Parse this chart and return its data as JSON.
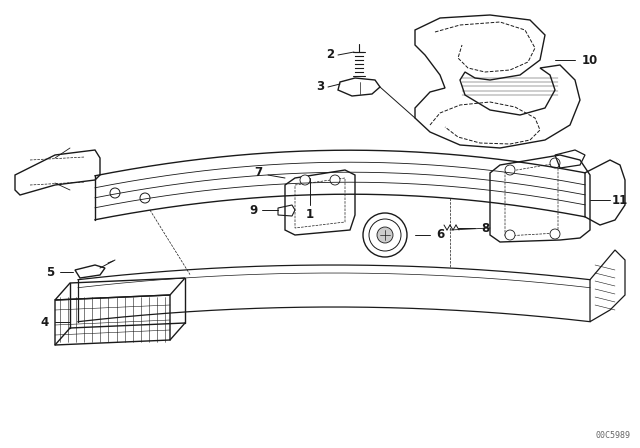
{
  "background_color": "#ffffff",
  "line_color": "#1a1a1a",
  "figure_width": 6.4,
  "figure_height": 4.48,
  "dpi": 100,
  "watermark": "00C5989",
  "parts": {
    "bumper_color": "#1a1a1a",
    "label_fontsize": 8.5
  }
}
